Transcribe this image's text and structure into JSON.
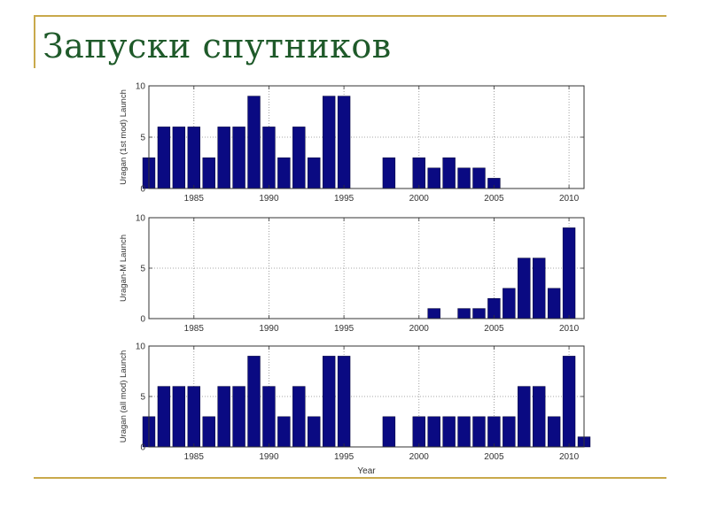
{
  "slide": {
    "title": "Запуски спутников",
    "accent_color": "#c9a94b",
    "title_color": "#1f5a2a"
  },
  "chart_data": [
    {
      "type": "bar",
      "ylabel": "Uragan (1st mod) Launch",
      "xlabel": "",
      "ylim": [
        0,
        10
      ],
      "yticks": [
        0,
        5,
        10
      ],
      "xlim": [
        1982,
        2011
      ],
      "xticks": [
        1985,
        1990,
        1995,
        2000,
        2005,
        2010
      ],
      "grid": true,
      "bar_color": "#0a0a82",
      "x": [
        1982,
        1983,
        1984,
        1985,
        1986,
        1987,
        1988,
        1989,
        1990,
        1991,
        1992,
        1993,
        1994,
        1995,
        1998,
        2000,
        2001,
        2002,
        2003,
        2004,
        2005
      ],
      "values": [
        3,
        6,
        6,
        6,
        3,
        6,
        6,
        9,
        6,
        3,
        6,
        3,
        9,
        9,
        3,
        3,
        2,
        3,
        2,
        2,
        1
      ]
    },
    {
      "type": "bar",
      "ylabel": "Uragan-M Launch",
      "xlabel": "",
      "ylim": [
        0,
        10
      ],
      "yticks": [
        0,
        5,
        10
      ],
      "xlim": [
        1982,
        2011
      ],
      "xticks": [
        1985,
        1990,
        1995,
        2000,
        2005,
        2010
      ],
      "grid": true,
      "bar_color": "#0a0a82",
      "x": [
        2001,
        2003,
        2004,
        2005,
        2006,
        2007,
        2008,
        2009,
        2010
      ],
      "values": [
        1,
        1,
        1,
        2,
        3,
        6,
        6,
        3,
        9
      ]
    },
    {
      "type": "bar",
      "ylabel": "Uragan (all mod) Launch",
      "xlabel": "Year",
      "ylim": [
        0,
        10
      ],
      "yticks": [
        0,
        5,
        10
      ],
      "xlim": [
        1982,
        2011
      ],
      "xticks": [
        1985,
        1990,
        1995,
        2000,
        2005,
        2010
      ],
      "grid": true,
      "bar_color": "#0a0a82",
      "x": [
        1982,
        1983,
        1984,
        1985,
        1986,
        1987,
        1988,
        1989,
        1990,
        1991,
        1992,
        1993,
        1994,
        1995,
        1998,
        2000,
        2001,
        2002,
        2003,
        2004,
        2005,
        2006,
        2007,
        2008,
        2009,
        2010,
        2011
      ],
      "values": [
        3,
        6,
        6,
        6,
        3,
        6,
        6,
        9,
        6,
        3,
        6,
        3,
        9,
        9,
        3,
        3,
        3,
        3,
        3,
        3,
        3,
        3,
        6,
        6,
        3,
        9,
        1
      ]
    }
  ]
}
